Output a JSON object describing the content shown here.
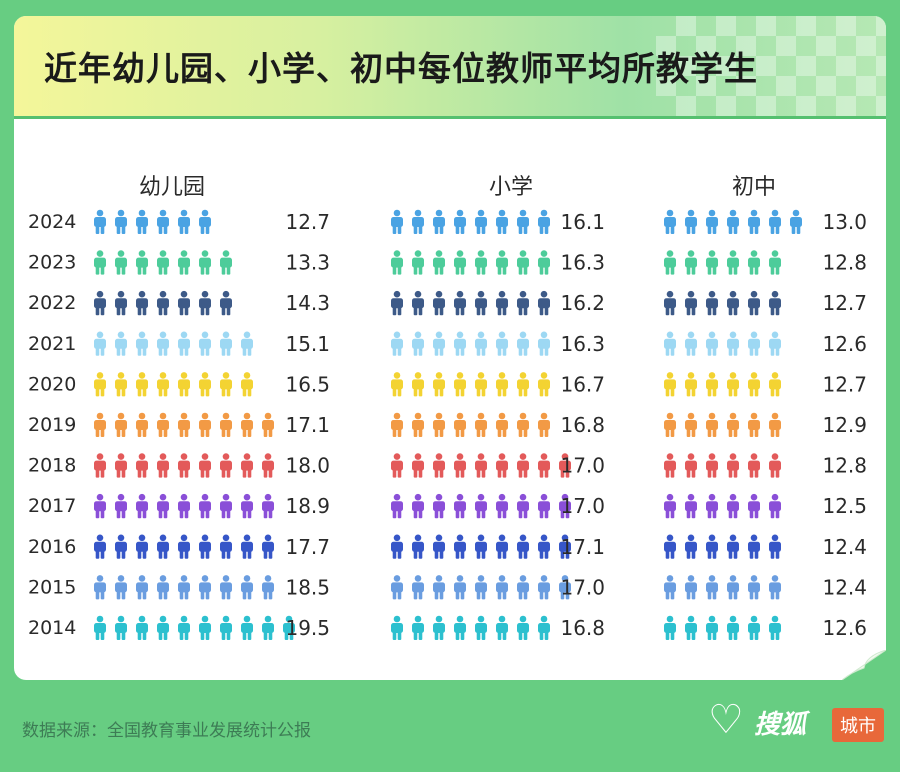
{
  "header": {
    "title": "近年幼儿园、小学、初中每位教师平均所教学生"
  },
  "footer": {
    "source": "数据来源：全国教育事业发展统计公报"
  },
  "logo": {
    "brand": "搜狐",
    "badge": "城市",
    "heart_icon": "heart-icon"
  },
  "chart_data": {
    "type": "pictogram",
    "icon": "person-icon",
    "years": [
      "2024",
      "2023",
      "2022",
      "2021",
      "2020",
      "2019",
      "2018",
      "2017",
      "2016",
      "2015",
      "2014"
    ],
    "row_colors": [
      "#4aa3e3",
      "#4dcc9a",
      "#3d5a88",
      "#9dd8f3",
      "#f3d332",
      "#f29a45",
      "#e35a5a",
      "#8a4fd8",
      "#3656c8",
      "#6a9de0",
      "#2cc0cf"
    ],
    "series": [
      {
        "name": "幼儿园",
        "values": [
          12.7,
          13.3,
          14.3,
          15.1,
          16.5,
          17.1,
          18.0,
          18.9,
          17.7,
          18.5,
          19.5
        ],
        "labels": [
          "12.7",
          "13.3",
          "14.3",
          "15.1",
          "16.5",
          "17.1",
          "18.0",
          "18.9",
          "17.7",
          "18.5",
          "19.5"
        ]
      },
      {
        "name": "小学",
        "values": [
          16.1,
          16.3,
          16.2,
          16.3,
          16.7,
          16.8,
          17.0,
          17.0,
          17.1,
          17.0,
          16.8
        ],
        "labels": [
          "16.1",
          "16.3",
          "16.2",
          "16.3",
          "16.7",
          "16.8",
          "17.0",
          "17.0",
          "17.1",
          "17.0",
          "16.8"
        ]
      },
      {
        "name": "初中",
        "values": [
          13.0,
          12.8,
          12.7,
          12.6,
          12.7,
          12.9,
          12.8,
          12.5,
          12.4,
          12.4,
          12.6
        ],
        "labels": [
          "13.0",
          "12.8",
          "12.7",
          "12.6",
          "12.7",
          "12.9",
          "12.8",
          "12.5",
          "12.4",
          "12.4",
          "12.6"
        ]
      }
    ]
  }
}
